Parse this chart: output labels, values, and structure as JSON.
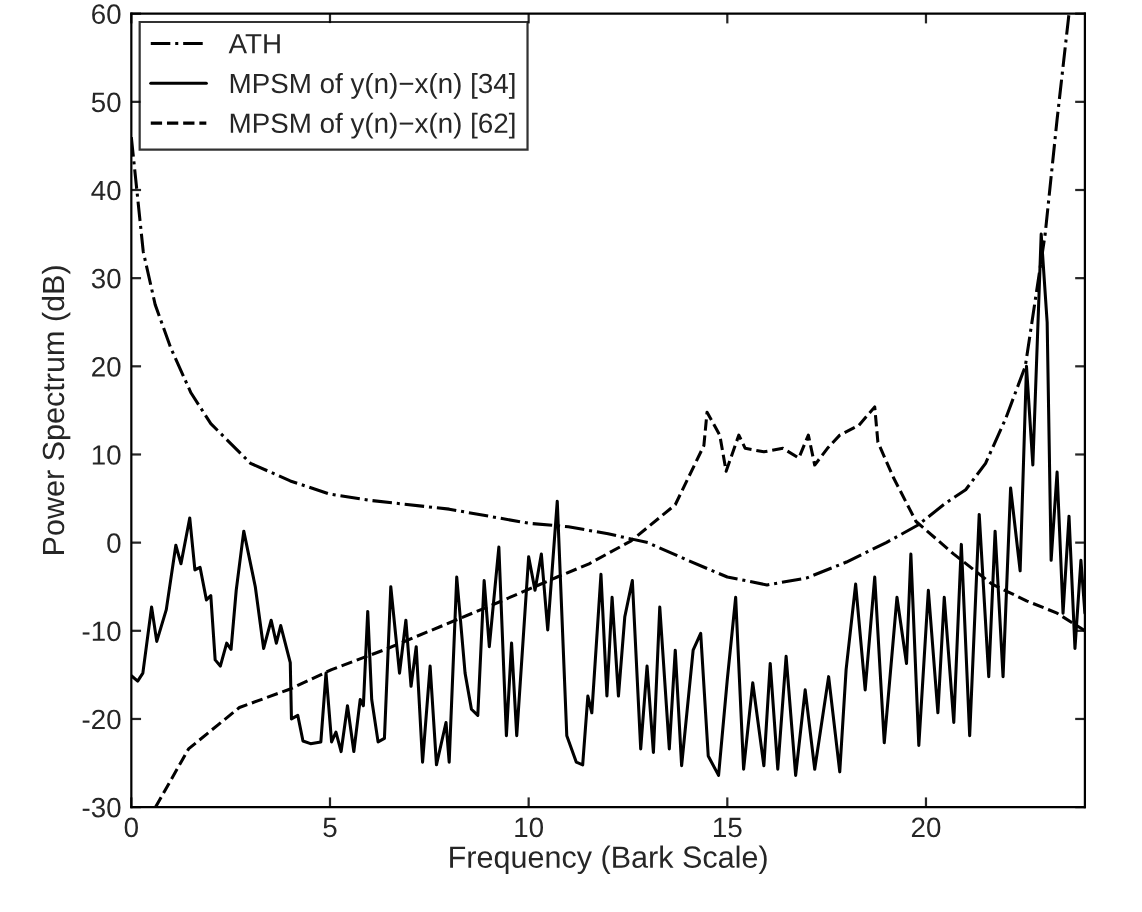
{
  "chart_data": {
    "type": "line",
    "xlabel": "Frequency (Bark Scale)",
    "ylabel": "Power Spectrum (dB)",
    "xlim": [
      0,
      24
    ],
    "ylim": [
      -30,
      60
    ],
    "xticks": [
      0,
      5,
      10,
      15,
      20
    ],
    "yticks": [
      -30,
      -20,
      -10,
      0,
      10,
      20,
      30,
      40,
      50,
      60
    ],
    "grid": false,
    "legend": "top left",
    "series": [
      {
        "name": "ATH",
        "color": "#000000",
        "line_style": "dashdot",
        "x": [
          0,
          0.3,
          0.6,
          1,
          1.5,
          2,
          3,
          4,
          5,
          6,
          8,
          10,
          11,
          12,
          13,
          14,
          15,
          16,
          17,
          18,
          19,
          19.8,
          20.5,
          21,
          21.5,
          22,
          22.5,
          23,
          23.3,
          23.6
        ],
        "values": [
          46,
          33,
          27,
          22,
          17,
          13.5,
          9,
          7,
          5.5,
          4.8,
          3.8,
          2.2,
          1.8,
          1,
          0,
          -2,
          -3.9,
          -4.8,
          -4,
          -2.2,
          0,
          2,
          4.5,
          6,
          9,
          14,
          20,
          35,
          48,
          60
        ]
      },
      {
        "name": "MPSM of y(n)−x(n) [34]",
        "color": "#000000",
        "line_style": "solid",
        "x": [
          0,
          0.16,
          0.29,
          0.51,
          0.64,
          0.88,
          1.12,
          1.25,
          1.47,
          1.6,
          1.73,
          1.89,
          2.0,
          2.11,
          2.24,
          2.4,
          2.51,
          2.64,
          2.83,
          3.12,
          3.33,
          3.52,
          3.65,
          3.76,
          4.0,
          4.03,
          4.19,
          4.32,
          4.51,
          4.77,
          4.9,
          5.04,
          5.15,
          5.28,
          5.44,
          5.6,
          5.76,
          5.84,
          5.95,
          6.05,
          6.21,
          6.37,
          6.53,
          6.75,
          6.91,
          7.04,
          7.17,
          7.33,
          7.52,
          7.68,
          7.92,
          8.0,
          8.19,
          8.4,
          8.56,
          8.72,
          8.88,
          9.01,
          9.25,
          9.44,
          9.57,
          9.7,
          10.0,
          10.16,
          10.32,
          10.48,
          10.72,
          10.96,
          11.2,
          11.36,
          11.49,
          11.59,
          11.82,
          11.97,
          12.1,
          12.26,
          12.42,
          12.61,
          12.82,
          12.98,
          13.14,
          13.3,
          13.54,
          13.69,
          13.85,
          14.14,
          14.33,
          14.52,
          14.78,
          15.0,
          15.21,
          15.41,
          15.64,
          15.92,
          16.08,
          16.27,
          16.48,
          16.72,
          16.96,
          17.2,
          17.55,
          17.83,
          17.99,
          18.23,
          18.47,
          18.71,
          18.95,
          19.27,
          19.51,
          19.62,
          19.82,
          20.06,
          20.3,
          20.46,
          20.7,
          20.89,
          21.1,
          21.34,
          21.58,
          21.74,
          21.94,
          22.13,
          22.37,
          22.53,
          22.69,
          22.9,
          23.05,
          23.15,
          23.3,
          23.45,
          23.6,
          23.75,
          23.9,
          24
        ],
        "values": [
          -15.1,
          -15.7,
          -14.8,
          -7.3,
          -11.2,
          -7.6,
          -0.3,
          -2.4,
          2.8,
          -3.1,
          -2.8,
          -6.5,
          -6.0,
          -13.3,
          -14.0,
          -11.4,
          -12.1,
          -5.4,
          1.3,
          -5.0,
          -12.0,
          -8.8,
          -11.4,
          -9.4,
          -13.6,
          -20.0,
          -19.6,
          -22.5,
          -22.8,
          -22.6,
          -14.8,
          -22.6,
          -21.5,
          -23.7,
          -18.5,
          -23.7,
          -17.8,
          -18.5,
          -7.8,
          -17.8,
          -22.6,
          -22.2,
          -5.0,
          -14.8,
          -8.8,
          -16.3,
          -11.8,
          -24.9,
          -14.0,
          -25.2,
          -20.4,
          -24.9,
          -3.9,
          -14.8,
          -18.9,
          -19.6,
          -4.3,
          -11.8,
          -0.5,
          -21.9,
          -11.4,
          -21.9,
          -1.6,
          -5.4,
          -1.3,
          -9.9,
          4.7,
          -21.9,
          -24.9,
          -25.2,
          -17.4,
          -19.3,
          -3.6,
          -17.4,
          -6.2,
          -17.4,
          -8.4,
          -4.3,
          -23.4,
          -14.0,
          -23.8,
          -7.3,
          -23.4,
          -12.2,
          -25.3,
          -12.2,
          -10.3,
          -24.2,
          -26.4,
          -15.5,
          -6.2,
          -25.7,
          -15.9,
          -25.3,
          -13.7,
          -25.7,
          -12.9,
          -26.4,
          -16.7,
          -25.7,
          -15.2,
          -26.0,
          -14.4,
          -4.7,
          -16.7,
          -3.9,
          -22.7,
          -6.2,
          -13.7,
          -1.3,
          -23.0,
          -5.4,
          -19.3,
          -6.2,
          -20.4,
          -0.2,
          -21.9,
          3.2,
          -15.2,
          1.3,
          -15.2,
          6.2,
          -3.2,
          20.0,
          8.8,
          35,
          25,
          -2,
          8,
          -8,
          3,
          -12,
          -2,
          -8
        ]
      },
      {
        "name": "MPSM of y(n)−x(n) [62]",
        "color": "#000000",
        "line_style": "dashed",
        "x": [
          0.61,
          1.44,
          2.72,
          4.0,
          5.04,
          6.4,
          7.52,
          9.12,
          10.72,
          11.52,
          12.58,
          13.69,
          14.41,
          14.49,
          14.81,
          14.97,
          15.29,
          15.45,
          15.92,
          16.4,
          16.8,
          17.04,
          17.2,
          17.52,
          17.83,
          18.31,
          18.71,
          18.79,
          19.19,
          19.75,
          20.7,
          21.66,
          22.53,
          23.3,
          24
        ],
        "values": [
          -30,
          -23.4,
          -18.7,
          -16.6,
          -14.4,
          -12.1,
          -10.0,
          -7.0,
          -3.9,
          -2.4,
          0.2,
          4.3,
          11.0,
          14.8,
          12.2,
          8.1,
          12.2,
          10.7,
          10.3,
          10.7,
          9.6,
          12.2,
          8.8,
          10.7,
          12.2,
          13.3,
          15.4,
          11.4,
          7.3,
          2.4,
          -1.3,
          -4.7,
          -6.6,
          -8,
          -10
        ]
      }
    ]
  }
}
